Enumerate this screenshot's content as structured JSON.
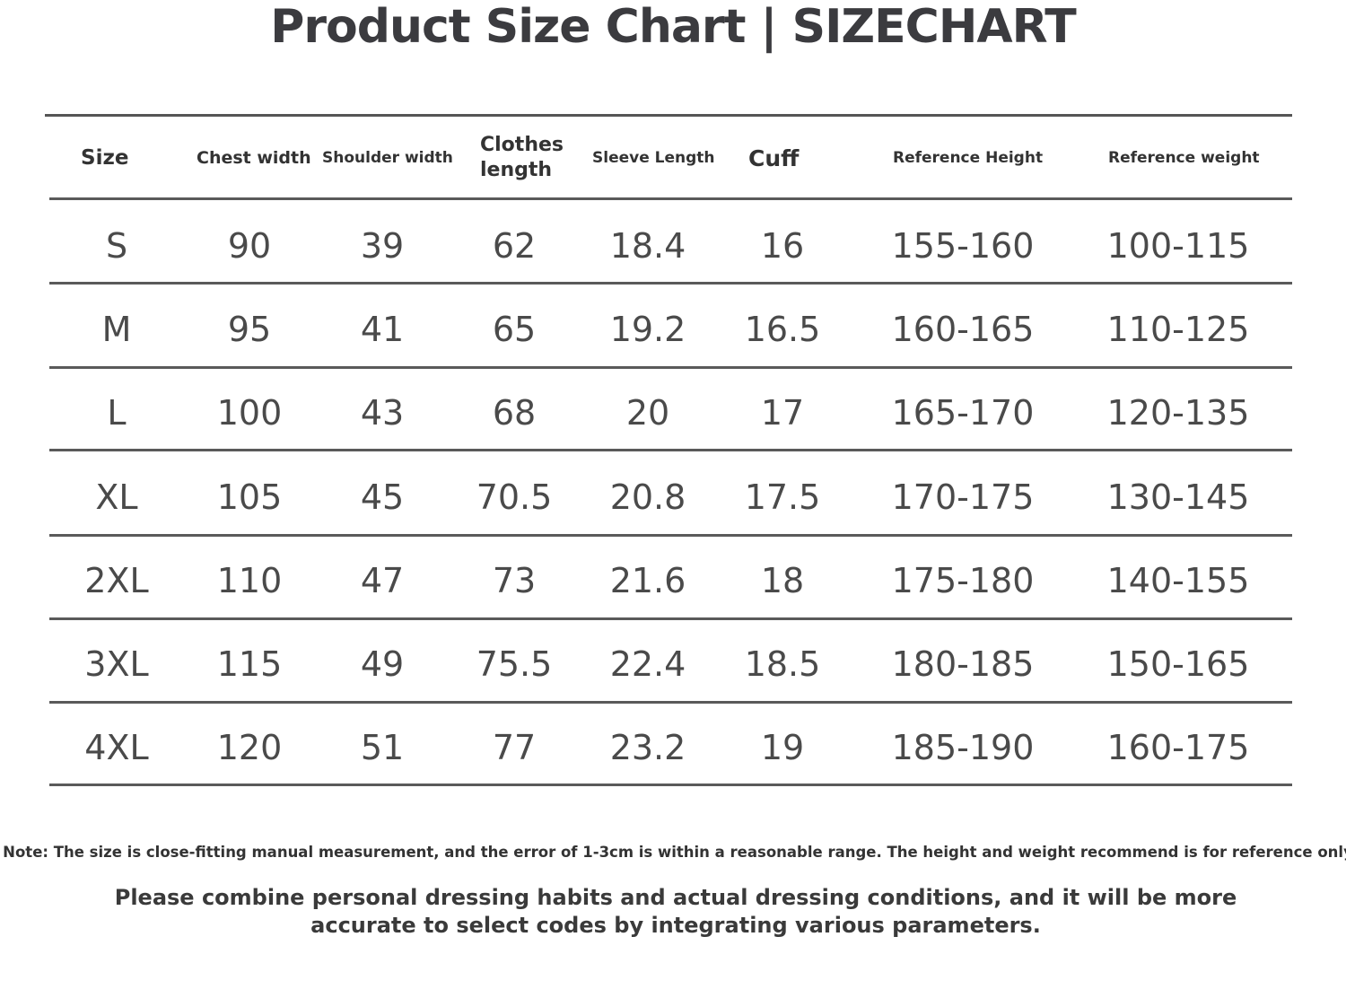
{
  "title": "Product Size Chart | SIZECHART",
  "headers": [
    "Size",
    "Chest width",
    "Shoulder width",
    "Clothes length",
    "Sleeve Length",
    "Cuff",
    "Reference Height",
    "Reference weight"
  ],
  "rows": [
    [
      "S",
      "90",
      "39",
      "62",
      "18.4",
      "16",
      "155-160",
      "100-115"
    ],
    [
      "M",
      "95",
      "41",
      "65",
      "19.2",
      "16.5",
      "160-165",
      "110-125"
    ],
    [
      "L",
      "100",
      "43",
      "68",
      "20",
      "17",
      "165-170",
      "120-135"
    ],
    [
      "XL",
      "105",
      "45",
      "70.5",
      "20.8",
      "17.5",
      "170-175",
      "130-145"
    ],
    [
      "2XL",
      "110",
      "47",
      "73",
      "21.6",
      "18",
      "175-180",
      "140-155"
    ],
    [
      "3XL",
      "115",
      "49",
      "75.5",
      "22.4",
      "18.5",
      "180-185",
      "150-165"
    ],
    [
      "4XL",
      "120",
      "51",
      "77",
      "23.2",
      "19",
      "185-190",
      "160-175"
    ]
  ],
  "note": "Note: The size is close-fitting manual measurement, and the error of 1-3cm is within a reasonable range. The height and weight recommend is for reference only,",
  "tip": "Please combine personal dressing habits and actual dressing conditions, and it will be more accurate to select codes by integrating various parameters."
}
